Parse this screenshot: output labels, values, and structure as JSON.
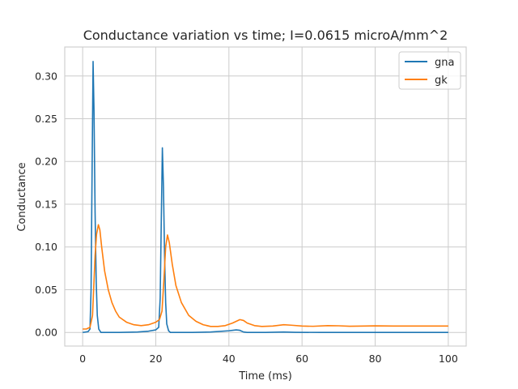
{
  "chart_data": {
    "type": "line",
    "title": "Conductance variation vs time; I=0.0615 microA/mm^2",
    "xlabel": "Time (ms)",
    "ylabel": "Conductance",
    "xlim": [
      -4.9,
      104.9
    ],
    "ylim": [
      -0.0159,
      0.3339
    ],
    "x_ticks": [
      0,
      20,
      40,
      60,
      80,
      100
    ],
    "x_tick_labels": [
      "0",
      "20",
      "40",
      "60",
      "80",
      "100"
    ],
    "y_ticks": [
      0.0,
      0.05,
      0.1,
      0.15,
      0.2,
      0.25,
      0.3
    ],
    "y_tick_labels": [
      "0.00",
      "0.05",
      "0.10",
      "0.15",
      "0.20",
      "0.25",
      "0.30"
    ],
    "grid": true,
    "legend_position": "top-right",
    "series": [
      {
        "name": "gna",
        "color": "#1f77b4",
        "points": [
          [
            0,
            0.0
          ],
          [
            1.5,
            0.001
          ],
          [
            2.0,
            0.004
          ],
          [
            2.3,
            0.05
          ],
          [
            2.6,
            0.2
          ],
          [
            2.85,
            0.317
          ],
          [
            3.1,
            0.26
          ],
          [
            3.4,
            0.14
          ],
          [
            3.7,
            0.06
          ],
          [
            4.0,
            0.02
          ],
          [
            4.4,
            0.004
          ],
          [
            5.0,
            0.0
          ],
          [
            10,
            0.0
          ],
          [
            15,
            0.0005
          ],
          [
            18,
            0.0015
          ],
          [
            20,
            0.003
          ],
          [
            20.8,
            0.006
          ],
          [
            21.2,
            0.04
          ],
          [
            21.5,
            0.13
          ],
          [
            21.8,
            0.216
          ],
          [
            22.1,
            0.17
          ],
          [
            22.4,
            0.09
          ],
          [
            22.7,
            0.035
          ],
          [
            23.0,
            0.01
          ],
          [
            23.5,
            0.002
          ],
          [
            24.0,
            0.0
          ],
          [
            30,
            0.0
          ],
          [
            35,
            0.0005
          ],
          [
            40,
            0.002
          ],
          [
            42,
            0.003
          ],
          [
            43,
            0.0025
          ],
          [
            44,
            0.0005
          ],
          [
            45,
            0.0
          ],
          [
            50,
            0.0
          ],
          [
            55,
            0.0005
          ],
          [
            58,
            0.0002
          ],
          [
            65,
            0.0
          ],
          [
            100,
            0.0
          ]
        ]
      },
      {
        "name": "gk",
        "color": "#ff7f0e",
        "points": [
          [
            0,
            0.004
          ],
          [
            1.0,
            0.004
          ],
          [
            2.0,
            0.006
          ],
          [
            2.7,
            0.02
          ],
          [
            3.0,
            0.05
          ],
          [
            3.4,
            0.09
          ],
          [
            3.8,
            0.115
          ],
          [
            4.3,
            0.126
          ],
          [
            4.7,
            0.12
          ],
          [
            5.2,
            0.1
          ],
          [
            6.0,
            0.072
          ],
          [
            7.0,
            0.05
          ],
          [
            8.0,
            0.035
          ],
          [
            9.0,
            0.025
          ],
          [
            10,
            0.018
          ],
          [
            12,
            0.012
          ],
          [
            14,
            0.009
          ],
          [
            16,
            0.008
          ],
          [
            18,
            0.009
          ],
          [
            20,
            0.012
          ],
          [
            21,
            0.015
          ],
          [
            21.7,
            0.025
          ],
          [
            22.2,
            0.06
          ],
          [
            22.7,
            0.1
          ],
          [
            23.2,
            0.114
          ],
          [
            23.7,
            0.105
          ],
          [
            24.5,
            0.08
          ],
          [
            25.5,
            0.055
          ],
          [
            27,
            0.035
          ],
          [
            29,
            0.02
          ],
          [
            31,
            0.013
          ],
          [
            33,
            0.009
          ],
          [
            35,
            0.007
          ],
          [
            37,
            0.007
          ],
          [
            39,
            0.008
          ],
          [
            41,
            0.011
          ],
          [
            43,
            0.015
          ],
          [
            44,
            0.014
          ],
          [
            45,
            0.011
          ],
          [
            47,
            0.008
          ],
          [
            49,
            0.007
          ],
          [
            52,
            0.0075
          ],
          [
            55,
            0.009
          ],
          [
            57,
            0.0085
          ],
          [
            60,
            0.0075
          ],
          [
            63,
            0.0072
          ],
          [
            67,
            0.008
          ],
          [
            70,
            0.0078
          ],
          [
            73,
            0.0073
          ],
          [
            77,
            0.0075
          ],
          [
            80,
            0.0077
          ],
          [
            85,
            0.0075
          ],
          [
            90,
            0.0075
          ],
          [
            95,
            0.0075
          ],
          [
            100,
            0.0075
          ]
        ]
      }
    ]
  }
}
